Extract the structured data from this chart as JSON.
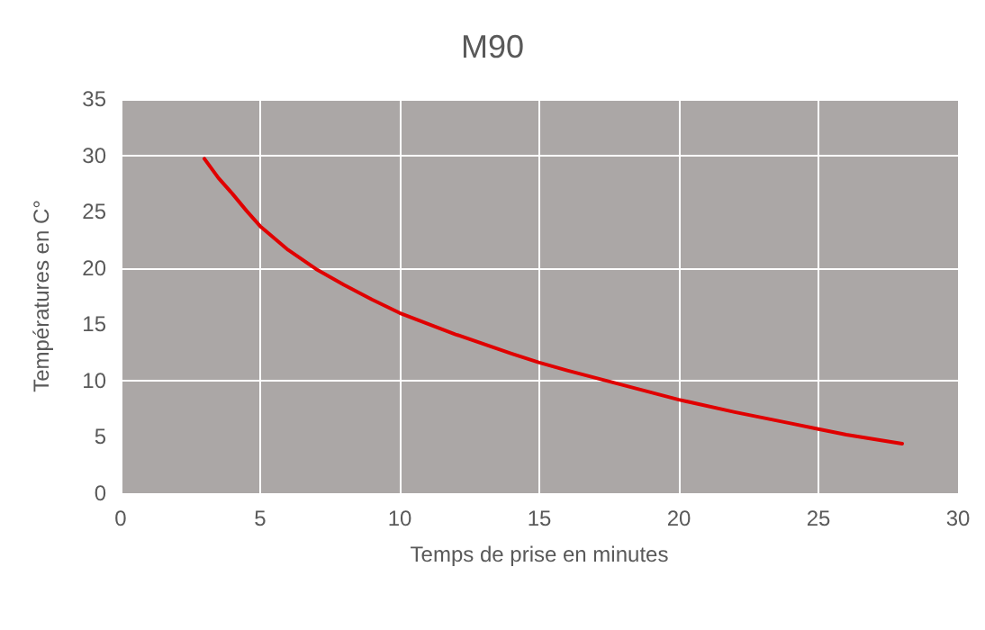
{
  "chart_data": {
    "type": "line",
    "title": "M90",
    "xlabel": "Temps de prise en minutes",
    "ylabel": "Températures en C°",
    "x": [
      3,
      3.5,
      4,
      4.5,
      5,
      6,
      7,
      8,
      9,
      10,
      12,
      14,
      15,
      16,
      18,
      20,
      22,
      24,
      25,
      26,
      28
    ],
    "series": [
      {
        "color": "#e00000",
        "values": [
          29.7,
          28,
          26.6,
          25.1,
          23.7,
          21.6,
          19.9,
          18.5,
          17.2,
          16.0,
          14.1,
          12.4,
          11.6,
          10.9,
          9.6,
          8.3,
          7.2,
          6.2,
          5.7,
          5.2,
          4.4
        ]
      }
    ],
    "xlim": [
      0,
      30
    ],
    "xticks": [
      0,
      5,
      10,
      15,
      20,
      25,
      30
    ],
    "ylim": [
      0,
      35
    ],
    "yticks": [
      0,
      5,
      10,
      15,
      20,
      25,
      30,
      35
    ],
    "grid": true,
    "marker": "none",
    "line_style": "solid"
  }
}
